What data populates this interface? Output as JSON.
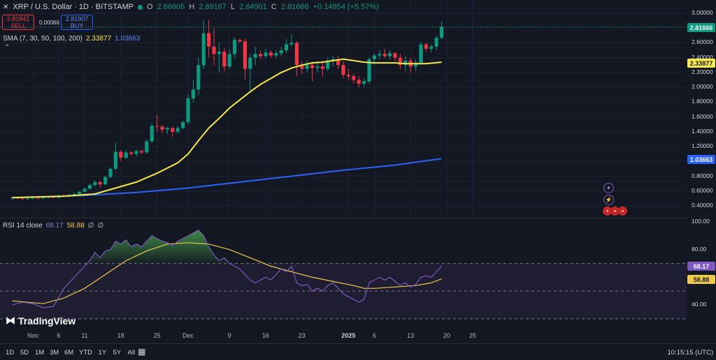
{
  "header": {
    "symbol": "XRP / U.S. Dollar · 1D · BITSTAMP",
    "o_label": "O",
    "o": "2.66605",
    "h_label": "H",
    "h": "2.89167",
    "l_label": "L",
    "l": "2.64901",
    "c_label": "C",
    "c": "2.81666",
    "change": "+0.14854 (+5.57%)"
  },
  "trade": {
    "sell_price": "2.81841",
    "sell_label": "SELL",
    "spread": "0.00066",
    "buy_price": "2.81907",
    "buy_label": "BUY"
  },
  "sma_legend": {
    "title": "SMA (7, 30, 50, 100, 200)",
    "v1": "2.33877",
    "v2": "1.03663"
  },
  "rsi_legend": {
    "title": "RSI 14 close",
    "v1": "68.17",
    "v2": "58.88",
    "v3": "∅",
    "v4": "∅"
  },
  "badges": {
    "last_price": "2.81666",
    "sma_yellow": "2.33877",
    "sma_blue": "1.03663",
    "rsi": "68.17",
    "rsi_ma": "58.88"
  },
  "colors": {
    "bg": "#131722",
    "up": "#089981",
    "down": "#f23645",
    "sma_yellow": "#f7e94b",
    "sma_blue": "#2962ff",
    "rsi": "#7e57c2",
    "rsi_ma": "#f2c94c"
  },
  "time_ranges": [
    "1D",
    "5D",
    "1M",
    "3M",
    "6M",
    "YTD",
    "1Y",
    "5Y",
    "All"
  ],
  "clock": "10:15:15 (UTC)",
  "brand": "TradingView",
  "chart_data": {
    "type": "candlestick",
    "title": "XRP / U.S. Dollar · 1D · BITSTAMP",
    "y_ticks": [
      "3.00000",
      "2.80000",
      "2.60000",
      "2.40000",
      "2.20000",
      "2.00000",
      "1.80000",
      "1.60000",
      "1.40000",
      "1.20000",
      "1.00000",
      "0.80000",
      "0.60000",
      "0.40000"
    ],
    "ylim": [
      0.3,
      3.05
    ],
    "x_ticks": [
      {
        "label": "Nov",
        "day": 0
      },
      {
        "label": "6",
        "day": 5
      },
      {
        "label": "11",
        "day": 10
      },
      {
        "label": "18",
        "day": 17
      },
      {
        "label": "25",
        "day": 24
      },
      {
        "label": "Dec",
        "day": 30
      },
      {
        "label": "9",
        "day": 38
      },
      {
        "label": "16",
        "day": 45
      },
      {
        "label": "23",
        "day": 52
      },
      {
        "label": "2025",
        "day": 61,
        "bold": true
      },
      {
        "label": "6",
        "day": 66
      },
      {
        "label": "13",
        "day": 73
      },
      {
        "label": "20",
        "day": 80
      },
      {
        "label": "25",
        "day": 85
      }
    ],
    "candles": [
      [
        -4,
        0.5,
        0.52,
        0.48,
        0.51
      ],
      [
        -3,
        0.51,
        0.52,
        0.49,
        0.5
      ],
      [
        -2,
        0.5,
        0.51,
        0.48,
        0.49
      ],
      [
        -1,
        0.49,
        0.51,
        0.48,
        0.5
      ],
      [
        0,
        0.5,
        0.52,
        0.49,
        0.51
      ],
      [
        1,
        0.51,
        0.52,
        0.49,
        0.5
      ],
      [
        2,
        0.5,
        0.52,
        0.49,
        0.51
      ],
      [
        3,
        0.51,
        0.53,
        0.5,
        0.52
      ],
      [
        4,
        0.52,
        0.53,
        0.5,
        0.51
      ],
      [
        5,
        0.51,
        0.55,
        0.51,
        0.54
      ],
      [
        6,
        0.54,
        0.56,
        0.52,
        0.53
      ],
      [
        7,
        0.53,
        0.56,
        0.52,
        0.55
      ],
      [
        8,
        0.55,
        0.58,
        0.54,
        0.56
      ],
      [
        9,
        0.56,
        0.6,
        0.55,
        0.59
      ],
      [
        10,
        0.59,
        0.65,
        0.58,
        0.63
      ],
      [
        11,
        0.63,
        0.7,
        0.62,
        0.68
      ],
      [
        12,
        0.68,
        0.75,
        0.66,
        0.72
      ],
      [
        13,
        0.72,
        0.74,
        0.65,
        0.69
      ],
      [
        14,
        0.69,
        0.8,
        0.68,
        0.79
      ],
      [
        15,
        0.79,
        0.92,
        0.77,
        0.9
      ],
      [
        16,
        0.9,
        1.25,
        0.88,
        1.13
      ],
      [
        17,
        1.13,
        1.15,
        1.0,
        1.05
      ],
      [
        18,
        1.05,
        1.16,
        1.03,
        1.12
      ],
      [
        19,
        1.12,
        1.14,
        1.08,
        1.1
      ],
      [
        20,
        1.1,
        1.16,
        1.07,
        1.14
      ],
      [
        21,
        1.14,
        1.16,
        1.1,
        1.12
      ],
      [
        22,
        1.12,
        1.3,
        1.1,
        1.27
      ],
      [
        23,
        1.27,
        1.52,
        1.25,
        1.48
      ],
      [
        24,
        1.48,
        1.63,
        1.4,
        1.47
      ],
      [
        25,
        1.47,
        1.49,
        1.38,
        1.43
      ],
      [
        26,
        1.43,
        1.47,
        1.37,
        1.45
      ],
      [
        27,
        1.45,
        1.47,
        1.33,
        1.4
      ],
      [
        28,
        1.4,
        1.48,
        1.38,
        1.45
      ],
      [
        29,
        1.45,
        1.55,
        1.43,
        1.53
      ],
      [
        30,
        1.53,
        1.9,
        1.5,
        1.85
      ],
      [
        31,
        1.85,
        2.1,
        1.8,
        1.97
      ],
      [
        32,
        1.97,
        2.4,
        1.9,
        2.3
      ],
      [
        33,
        2.3,
        2.9,
        2.25,
        2.73
      ],
      [
        34,
        2.73,
        2.91,
        2.4,
        2.55
      ],
      [
        35,
        2.55,
        2.8,
        2.3,
        2.45
      ],
      [
        36,
        2.45,
        2.6,
        2.2,
        2.48
      ],
      [
        37,
        2.48,
        2.53,
        2.22,
        2.28
      ],
      [
        38,
        2.28,
        2.52,
        2.25,
        2.45
      ],
      [
        39,
        2.45,
        2.68,
        2.4,
        2.64
      ],
      [
        40,
        2.64,
        2.66,
        2.6,
        2.62
      ],
      [
        41,
        2.62,
        2.65,
        2.1,
        2.25
      ],
      [
        42,
        2.25,
        2.45,
        1.92,
        2.4
      ],
      [
        43,
        2.4,
        2.55,
        2.3,
        2.45
      ],
      [
        44,
        2.45,
        2.5,
        2.38,
        2.42
      ],
      [
        45,
        2.42,
        2.52,
        2.4,
        2.47
      ],
      [
        46,
        2.47,
        2.5,
        2.4,
        2.43
      ],
      [
        47,
        2.43,
        2.5,
        2.39,
        2.46
      ],
      [
        48,
        2.46,
        2.55,
        2.42,
        2.5
      ],
      [
        49,
        2.5,
        2.65,
        2.46,
        2.58
      ],
      [
        50,
        2.58,
        2.72,
        2.56,
        2.6
      ],
      [
        51,
        2.6,
        2.62,
        2.15,
        2.3
      ],
      [
        52,
        2.3,
        2.35,
        2.18,
        2.25
      ],
      [
        53,
        2.25,
        2.36,
        2.2,
        2.3
      ],
      [
        54,
        2.3,
        2.32,
        2.08,
        2.26
      ],
      [
        55,
        2.26,
        2.35,
        2.2,
        2.28
      ],
      [
        56,
        2.28,
        2.36,
        2.15,
        2.25
      ],
      [
        57,
        2.25,
        2.4,
        2.22,
        2.35
      ],
      [
        58,
        2.35,
        2.42,
        2.28,
        2.38
      ],
      [
        59,
        2.38,
        2.42,
        2.25,
        2.3
      ],
      [
        60,
        2.3,
        2.36,
        2.12,
        2.17
      ],
      [
        61,
        2.17,
        2.25,
        2.1,
        2.15
      ],
      [
        62,
        2.15,
        2.19,
        2.05,
        2.1
      ],
      [
        63,
        2.1,
        2.15,
        2.0,
        2.05
      ],
      [
        64,
        2.05,
        2.12,
        2.0,
        2.08
      ],
      [
        65,
        2.08,
        2.4,
        2.05,
        2.38
      ],
      [
        66,
        2.38,
        2.45,
        2.3,
        2.43
      ],
      [
        67,
        2.43,
        2.5,
        2.38,
        2.45
      ],
      [
        68,
        2.45,
        2.52,
        2.4,
        2.42
      ],
      [
        69,
        2.42,
        2.5,
        2.38,
        2.46
      ],
      [
        70,
        2.46,
        2.48,
        2.35,
        2.4
      ],
      [
        71,
        2.4,
        2.45,
        2.25,
        2.3
      ],
      [
        72,
        2.3,
        2.42,
        2.22,
        2.36
      ],
      [
        73,
        2.36,
        2.4,
        2.2,
        2.28
      ],
      [
        74,
        2.28,
        2.38,
        2.22,
        2.33
      ],
      [
        75,
        2.33,
        2.62,
        2.3,
        2.58
      ],
      [
        76,
        2.58,
        2.6,
        2.48,
        2.52
      ],
      [
        77,
        2.52,
        2.58,
        2.47,
        2.55
      ],
      [
        78,
        2.55,
        2.7,
        2.5,
        2.67
      ],
      [
        79,
        2.67,
        2.89,
        2.65,
        2.82
      ]
    ],
    "sma_yellow": [
      [
        -4,
        0.51
      ],
      [
        6,
        0.53
      ],
      [
        12,
        0.56
      ],
      [
        16,
        0.64
      ],
      [
        20,
        0.72
      ],
      [
        24,
        0.84
      ],
      [
        28,
        0.98
      ],
      [
        30,
        1.1
      ],
      [
        32,
        1.28
      ],
      [
        34,
        1.45
      ],
      [
        36,
        1.58
      ],
      [
        38,
        1.72
      ],
      [
        40,
        1.83
      ],
      [
        42,
        1.94
      ],
      [
        44,
        2.04
      ],
      [
        46,
        2.12
      ],
      [
        48,
        2.2
      ],
      [
        50,
        2.26
      ],
      [
        52,
        2.3
      ],
      [
        54,
        2.33
      ],
      [
        56,
        2.34
      ],
      [
        58,
        2.36
      ],
      [
        60,
        2.38
      ],
      [
        62,
        2.36
      ],
      [
        64,
        2.34
      ],
      [
        66,
        2.33
      ],
      [
        68,
        2.33
      ],
      [
        70,
        2.33
      ],
      [
        72,
        2.32
      ],
      [
        74,
        2.32
      ],
      [
        76,
        2.32
      ],
      [
        79,
        2.34
      ]
    ],
    "sma_blue": [
      [
        -4,
        0.51
      ],
      [
        10,
        0.54
      ],
      [
        20,
        0.58
      ],
      [
        30,
        0.64
      ],
      [
        40,
        0.72
      ],
      [
        50,
        0.8
      ],
      [
        60,
        0.88
      ],
      [
        70,
        0.95
      ],
      [
        79,
        1.03663
      ]
    ],
    "rsi": {
      "ylim": [
        30,
        100
      ],
      "y_ticks": [
        "100.00",
        "80.00",
        "40.00"
      ],
      "overbought": 70,
      "oversold": 30,
      "mid": 50,
      "rsi_line": [
        [
          -4,
          40
        ],
        [
          -2,
          42
        ],
        [
          0,
          41
        ],
        [
          2,
          38
        ],
        [
          4,
          39
        ],
        [
          6,
          52
        ],
        [
          8,
          60
        ],
        [
          10,
          68
        ],
        [
          11,
          72
        ],
        [
          12,
          78
        ],
        [
          13,
          74
        ],
        [
          14,
          79
        ],
        [
          15,
          80
        ],
        [
          16,
          86
        ],
        [
          17,
          84
        ],
        [
          18,
          87
        ],
        [
          19,
          82
        ],
        [
          20,
          84
        ],
        [
          21,
          82
        ],
        [
          22,
          86
        ],
        [
          23,
          90
        ],
        [
          24,
          88
        ],
        [
          25,
          86
        ],
        [
          26,
          85
        ],
        [
          27,
          83
        ],
        [
          28,
          86
        ],
        [
          29,
          88
        ],
        [
          30,
          90
        ],
        [
          31,
          92
        ],
        [
          32,
          94
        ],
        [
          33,
          90
        ],
        [
          34,
          82
        ],
        [
          35,
          76
        ],
        [
          36,
          72
        ],
        [
          37,
          74
        ],
        [
          38,
          70
        ],
        [
          39,
          68
        ],
        [
          40,
          66
        ],
        [
          41,
          62
        ],
        [
          42,
          58
        ],
        [
          43,
          56
        ],
        [
          44,
          58
        ],
        [
          45,
          60
        ],
        [
          46,
          58
        ],
        [
          47,
          62
        ],
        [
          48,
          66
        ],
        [
          49,
          64
        ],
        [
          50,
          68
        ],
        [
          51,
          56
        ],
        [
          52,
          54
        ],
        [
          53,
          55
        ],
        [
          54,
          50
        ],
        [
          55,
          52
        ],
        [
          56,
          50
        ],
        [
          57,
          54
        ],
        [
          58,
          56
        ],
        [
          59,
          52
        ],
        [
          60,
          48
        ],
        [
          61,
          46
        ],
        [
          62,
          44
        ],
        [
          63,
          42
        ],
        [
          64,
          44
        ],
        [
          65,
          56
        ],
        [
          66,
          58
        ],
        [
          67,
          60
        ],
        [
          68,
          58
        ],
        [
          69,
          60
        ],
        [
          70,
          57
        ],
        [
          71,
          54
        ],
        [
          72,
          56
        ],
        [
          73,
          53
        ],
        [
          74,
          55
        ],
        [
          75,
          60
        ],
        [
          76,
          61
        ],
        [
          77,
          60
        ],
        [
          78,
          64
        ],
        [
          79,
          68.17
        ]
      ],
      "rsi_ma": [
        [
          -4,
          43
        ],
        [
          2,
          41
        ],
        [
          6,
          45
        ],
        [
          10,
          52
        ],
        [
          14,
          62
        ],
        [
          18,
          72
        ],
        [
          22,
          79
        ],
        [
          26,
          84
        ],
        [
          30,
          85
        ],
        [
          34,
          84
        ],
        [
          38,
          80
        ],
        [
          42,
          74
        ],
        [
          46,
          68
        ],
        [
          50,
          64
        ],
        [
          54,
          60
        ],
        [
          58,
          57
        ],
        [
          62,
          54
        ],
        [
          64,
          52
        ],
        [
          66,
          52
        ],
        [
          70,
          53
        ],
        [
          74,
          54
        ],
        [
          77,
          56
        ],
        [
          79,
          58.88
        ]
      ]
    }
  }
}
